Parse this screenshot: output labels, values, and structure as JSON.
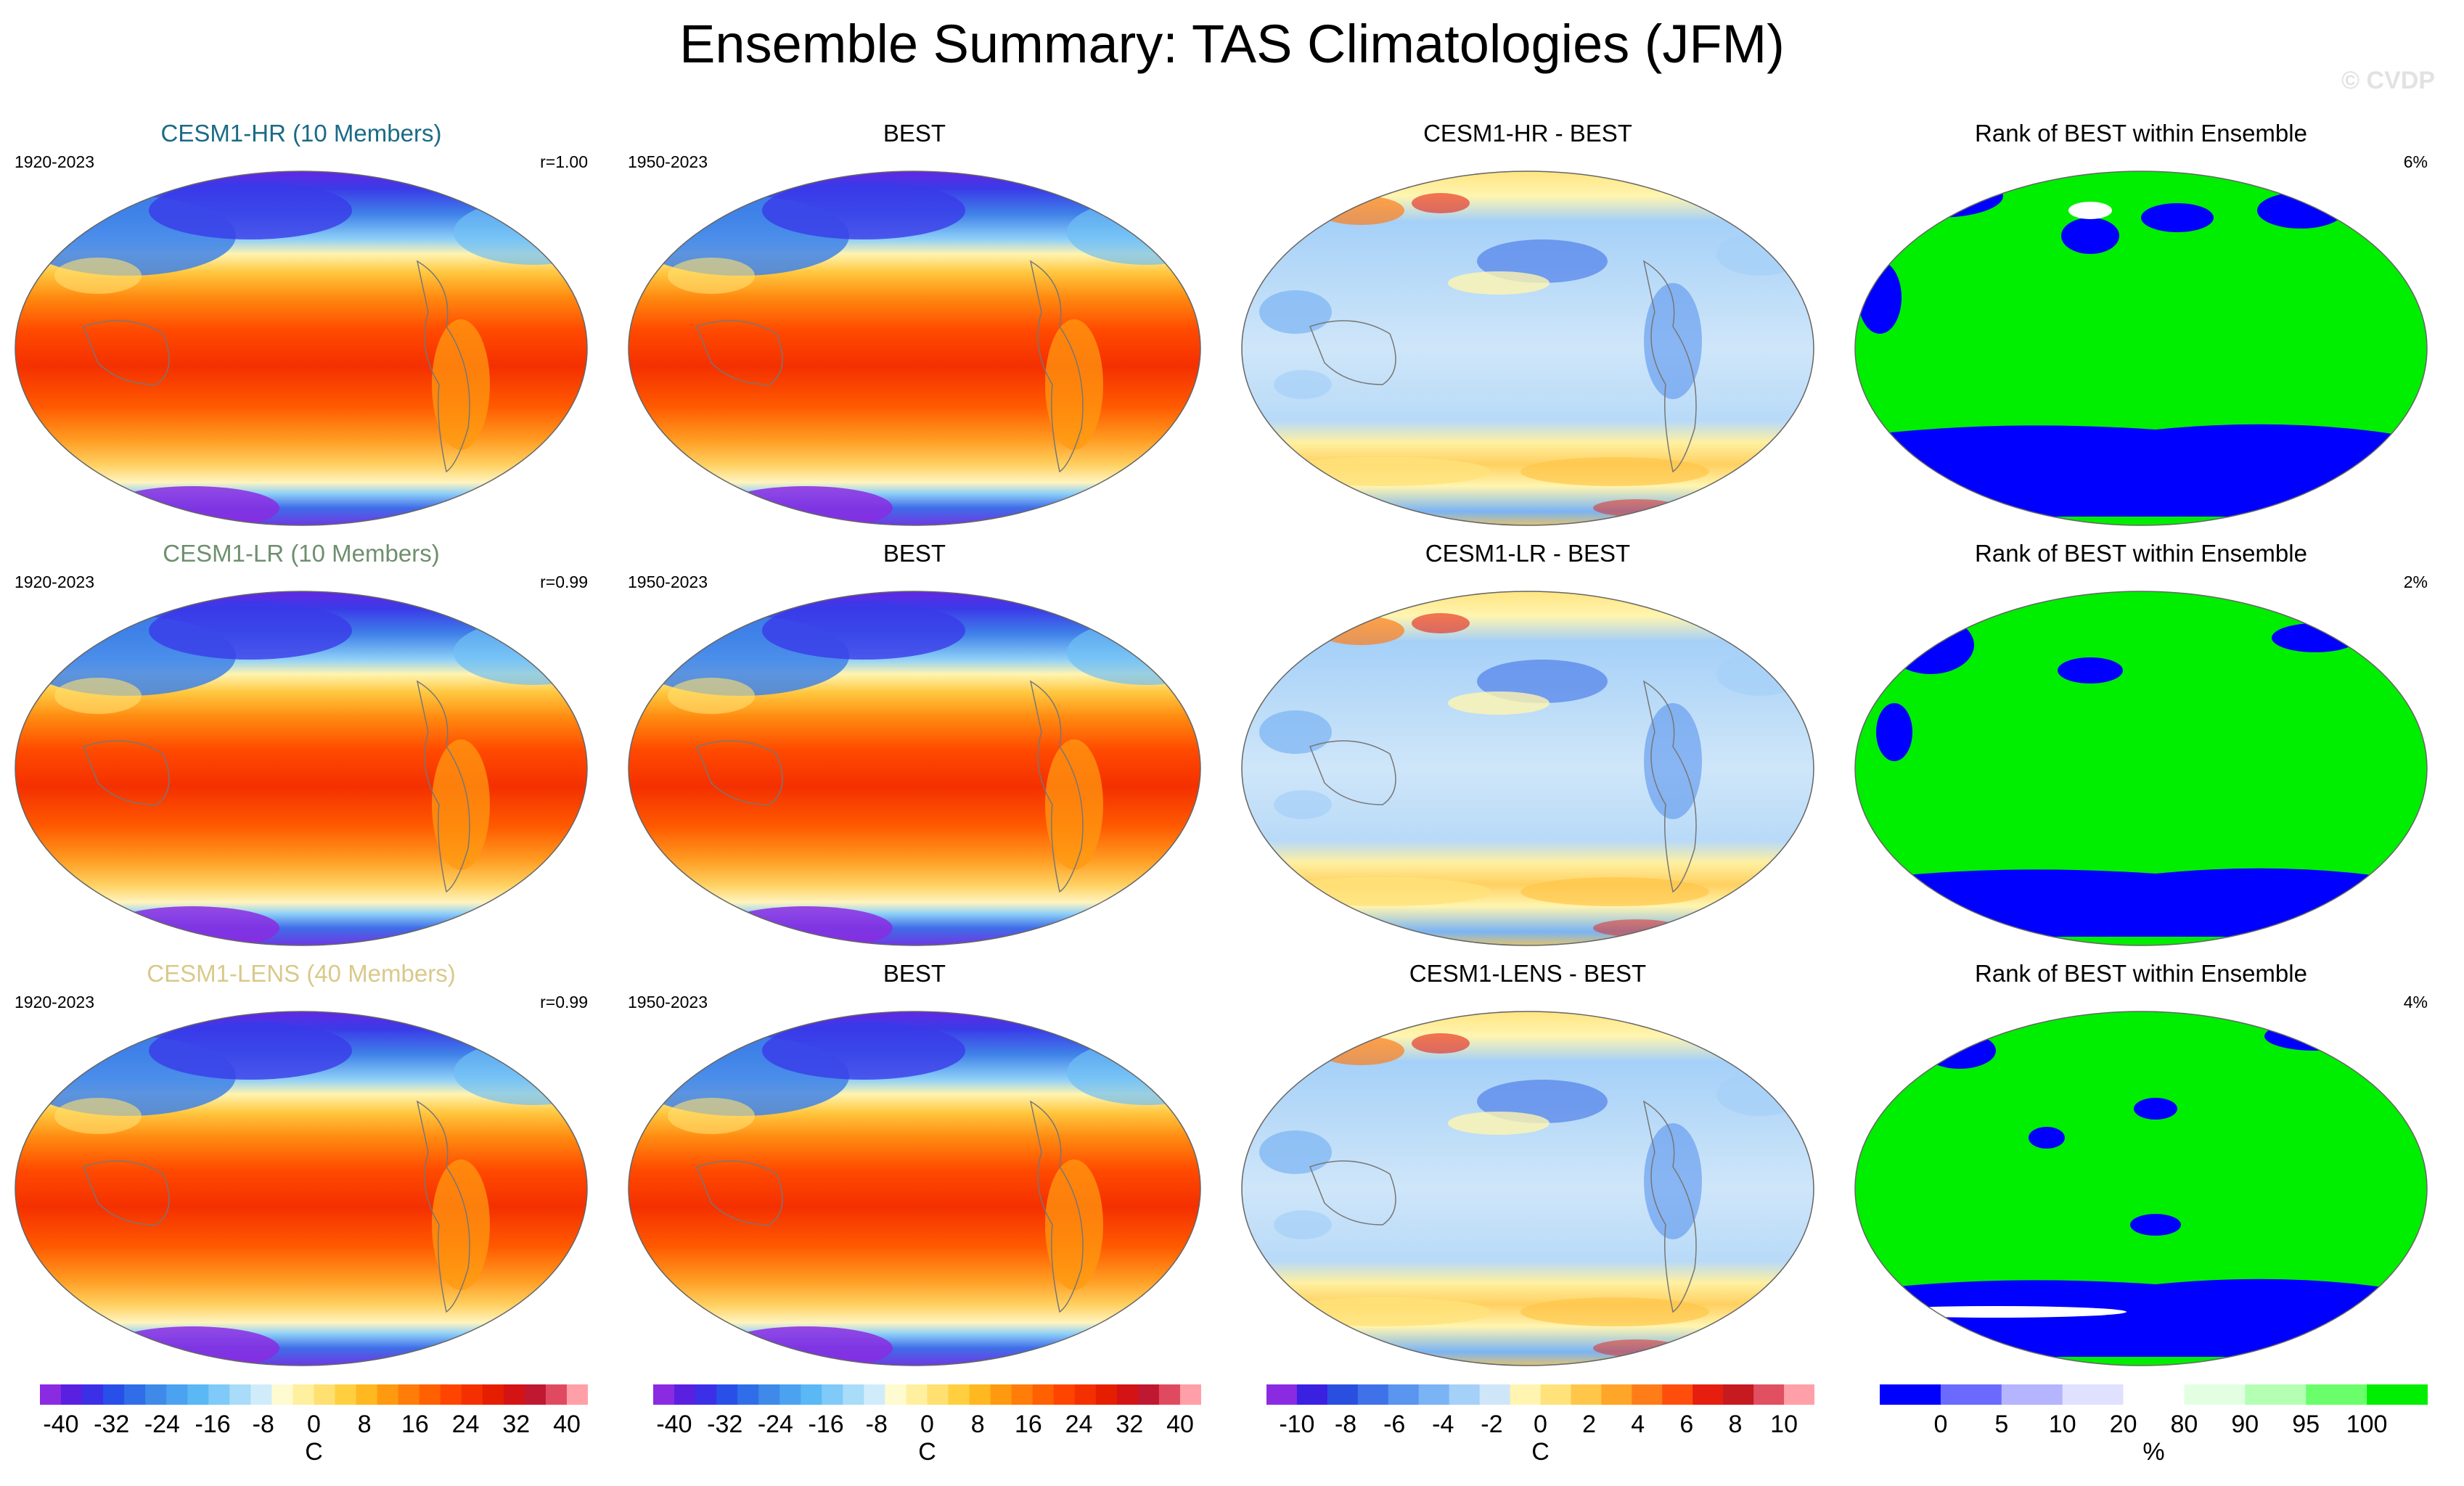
{
  "title": "Ensemble Summary: TAS Climatologies (JFM)",
  "watermark": "© CVDP",
  "rows": [
    {
      "ensemble": {
        "title": "CESM1-HR (10 Members)",
        "title_color": "#1b6b85",
        "years": "1920-2023",
        "r": "r=1.00"
      },
      "obs": {
        "title": "BEST",
        "years": "1950-2023"
      },
      "diff": {
        "title": "CESM1-HR - BEST"
      },
      "rank": {
        "title": "Rank of BEST within Ensemble",
        "pct": "6%"
      }
    },
    {
      "ensemble": {
        "title": "CESM1-LR (10 Members)",
        "title_color": "#6f8f6f",
        "years": "1920-2023",
        "r": "r=0.99"
      },
      "obs": {
        "title": "BEST",
        "years": "1950-2023"
      },
      "diff": {
        "title": "CESM1-LR - BEST"
      },
      "rank": {
        "title": "Rank of BEST within Ensemble",
        "pct": "2%"
      }
    },
    {
      "ensemble": {
        "title": "CESM1-LENS (40 Members)",
        "title_color": "#d9c98a",
        "years": "1920-2023",
        "r": "r=0.99"
      },
      "obs": {
        "title": "BEST",
        "years": "1950-2023"
      },
      "diff": {
        "title": "CESM1-LENS - BEST"
      },
      "rank": {
        "title": "Rank of BEST within Ensemble",
        "pct": "4%"
      }
    }
  ],
  "colorbars": [
    {
      "name": "tas",
      "unit": "C",
      "labels": [
        "-40",
        "-32",
        "-24",
        "-16",
        "-8",
        "0",
        "8",
        "16",
        "24",
        "32",
        "40"
      ],
      "colors": [
        "#8a2be2",
        "#5a20e0",
        "#3b2fe8",
        "#2850e8",
        "#2f6ee8",
        "#3f8ae8",
        "#4aa2f0",
        "#5ab8f5",
        "#7fcaf8",
        "#a8dcf8",
        "#d0ecfa",
        "#fffbd0",
        "#fff0a0",
        "#ffe070",
        "#ffcf40",
        "#ffb820",
        "#ff9a10",
        "#ff7d08",
        "#ff6000",
        "#ff4400",
        "#f43000",
        "#e61e00",
        "#d41414",
        "#c01830",
        "#e04a60",
        "#ffa0a8"
      ]
    },
    {
      "name": "tas-obs",
      "unit": "C",
      "labels": [
        "-40",
        "-32",
        "-24",
        "-16",
        "-8",
        "0",
        "8",
        "16",
        "24",
        "32",
        "40"
      ],
      "colors": [
        "#8a2be2",
        "#5a20e0",
        "#3b2fe8",
        "#2850e8",
        "#2f6ee8",
        "#3f8ae8",
        "#4aa2f0",
        "#5ab8f5",
        "#7fcaf8",
        "#a8dcf8",
        "#d0ecfa",
        "#fffbd0",
        "#fff0a0",
        "#ffe070",
        "#ffcf40",
        "#ffb820",
        "#ff9a10",
        "#ff7d08",
        "#ff6000",
        "#ff4400",
        "#f43000",
        "#e61e00",
        "#d41414",
        "#c01830",
        "#e04a60",
        "#ffa0a8"
      ]
    },
    {
      "name": "diff",
      "unit": "C",
      "labels": [
        "-10",
        "-8",
        "-6",
        "-4",
        "-2",
        "0",
        "2",
        "4",
        "6",
        "8",
        "10"
      ],
      "colors": [
        "#8a2be2",
        "#3a20e0",
        "#2a4fe0",
        "#3f72e8",
        "#5a95ef",
        "#7ab4f4",
        "#a5d0f8",
        "#cfe6f9",
        "#fff5b0",
        "#ffe27a",
        "#ffc64a",
        "#ffa528",
        "#ff7d18",
        "#ff4e0c",
        "#e61e10",
        "#c41a20",
        "#e05060",
        "#ffa0a8"
      ]
    },
    {
      "name": "rank",
      "unit": "%",
      "labels": [
        "0",
        "5",
        "10",
        "20",
        "80",
        "90",
        "95",
        "100"
      ],
      "colors": [
        "#0000ff",
        "#6a6aff",
        "#b4b4ff",
        "#e0e0ff",
        "#ffffff",
        "#e2ffe2",
        "#b4ffb4",
        "#6aff6a",
        "#00ee00"
      ]
    }
  ]
}
